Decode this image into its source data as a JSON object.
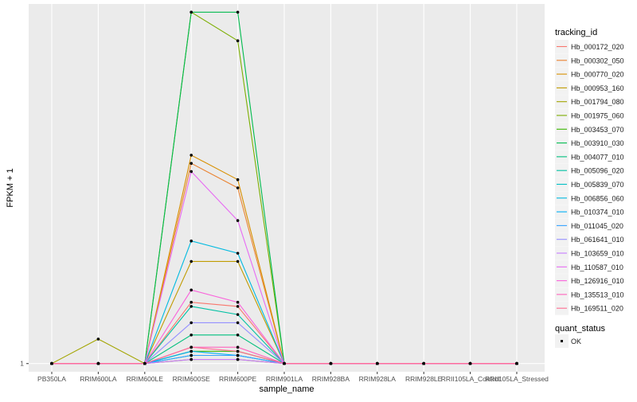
{
  "chart_data": {
    "type": "line",
    "xlabel": "sample_name",
    "ylabel": "FPKM + 1",
    "categories": [
      "PB350LA",
      "RRIM600LA",
      "RRIM600LE",
      "RRIM600SE",
      "RRIM600PE",
      "RRIM901LA",
      "RRIM928BA",
      "RRIM928LA",
      "RRIM928LE",
      "RRII105LA_Control",
      "RRII105LA_Stressed"
    ],
    "y_ticks": [
      {
        "label": "1",
        "value": 1
      }
    ],
    "y_domain": [
      0.98,
      1.88
    ],
    "grid": true,
    "legend": {
      "title": "tracking_id",
      "position": "right",
      "status_title": "quant_status",
      "status_label": "OK"
    },
    "series": [
      {
        "name": "Hb_000172_020",
        "color": "#F8766D",
        "values": [
          1,
          1,
          1,
          1.15,
          1.14,
          1,
          1,
          1,
          1,
          1,
          1
        ]
      },
      {
        "name": "Hb_000302_050",
        "color": "#EA8331",
        "values": [
          1,
          1,
          1,
          1.49,
          1.43,
          1,
          1,
          1,
          1,
          1,
          1
        ]
      },
      {
        "name": "Hb_000770_020",
        "color": "#D89000",
        "values": [
          1,
          1,
          1,
          1.51,
          1.45,
          1,
          1,
          1,
          1,
          1,
          1
        ]
      },
      {
        "name": "Hb_000953_160",
        "color": "#C09B00",
        "values": [
          1,
          1,
          1,
          1.25,
          1.25,
          1,
          1,
          1,
          1,
          1,
          1
        ]
      },
      {
        "name": "Hb_001794_080",
        "color": "#A3A500",
        "values": [
          1,
          1.06,
          1,
          1.01,
          1.01,
          1,
          1,
          1,
          1,
          1,
          1
        ]
      },
      {
        "name": "Hb_001975_060",
        "color": "#7CAE00",
        "values": [
          1,
          1,
          1,
          1.86,
          1.79,
          1,
          1,
          1,
          1,
          1,
          1
        ]
      },
      {
        "name": "Hb_003453_070",
        "color": "#39B600",
        "values": [
          1,
          1,
          1,
          1.03,
          1.03,
          1,
          1,
          1,
          1,
          1,
          1
        ]
      },
      {
        "name": "Hb_003910_030",
        "color": "#00BB4E",
        "values": [
          1,
          1,
          1,
          1.86,
          1.86,
          1,
          1,
          1,
          1,
          1,
          1
        ]
      },
      {
        "name": "Hb_004077_010",
        "color": "#00BF7D",
        "values": [
          1,
          1,
          1,
          1.07,
          1.07,
          1,
          1,
          1,
          1,
          1,
          1
        ]
      },
      {
        "name": "Hb_005096_020",
        "color": "#00C1A3",
        "values": [
          1,
          1,
          1,
          1.14,
          1.12,
          1,
          1,
          1,
          1,
          1,
          1
        ]
      },
      {
        "name": "Hb_005839_070",
        "color": "#00BFC4",
        "values": [
          1,
          1,
          1,
          1.02,
          1.02,
          1,
          1,
          1,
          1,
          1,
          1
        ]
      },
      {
        "name": "Hb_006856_060",
        "color": "#00BAE0",
        "values": [
          1,
          1,
          1,
          1.3,
          1.27,
          1,
          1,
          1,
          1,
          1,
          1
        ]
      },
      {
        "name": "Hb_010374_010",
        "color": "#00B0F6",
        "values": [
          1,
          1,
          1,
          1.03,
          1.02,
          1,
          1,
          1,
          1,
          1,
          1
        ]
      },
      {
        "name": "Hb_011045_020",
        "color": "#35A2FF",
        "values": [
          1,
          1,
          1,
          1.02,
          1.02,
          1,
          1,
          1,
          1,
          1,
          1
        ]
      },
      {
        "name": "Hb_061641_010",
        "color": "#9590FF",
        "values": [
          1,
          1,
          1,
          1.1,
          1.1,
          1,
          1,
          1,
          1,
          1,
          1
        ]
      },
      {
        "name": "Hb_103659_010",
        "color": "#C77CFF",
        "values": [
          1,
          1,
          1,
          1.01,
          1.01,
          1,
          1,
          1,
          1,
          1,
          1
        ]
      },
      {
        "name": "Hb_110587_010",
        "color": "#E76BF3",
        "values": [
          1,
          1,
          1,
          1.47,
          1.35,
          1,
          1,
          1,
          1,
          1,
          1
        ]
      },
      {
        "name": "Hb_126916_010",
        "color": "#FA62DB",
        "values": [
          1,
          1,
          1,
          1.18,
          1.15,
          1,
          1,
          1,
          1,
          1,
          1
        ]
      },
      {
        "name": "Hb_135513_010",
        "color": "#FF62BC",
        "values": [
          1,
          1,
          1,
          1.04,
          1.04,
          1,
          1,
          1,
          1,
          1,
          1
        ]
      },
      {
        "name": "Hb_169511_020",
        "color": "#FF6C91",
        "values": [
          1,
          1,
          1,
          1.04,
          1.03,
          1,
          1,
          1,
          1,
          1,
          1
        ]
      }
    ]
  }
}
